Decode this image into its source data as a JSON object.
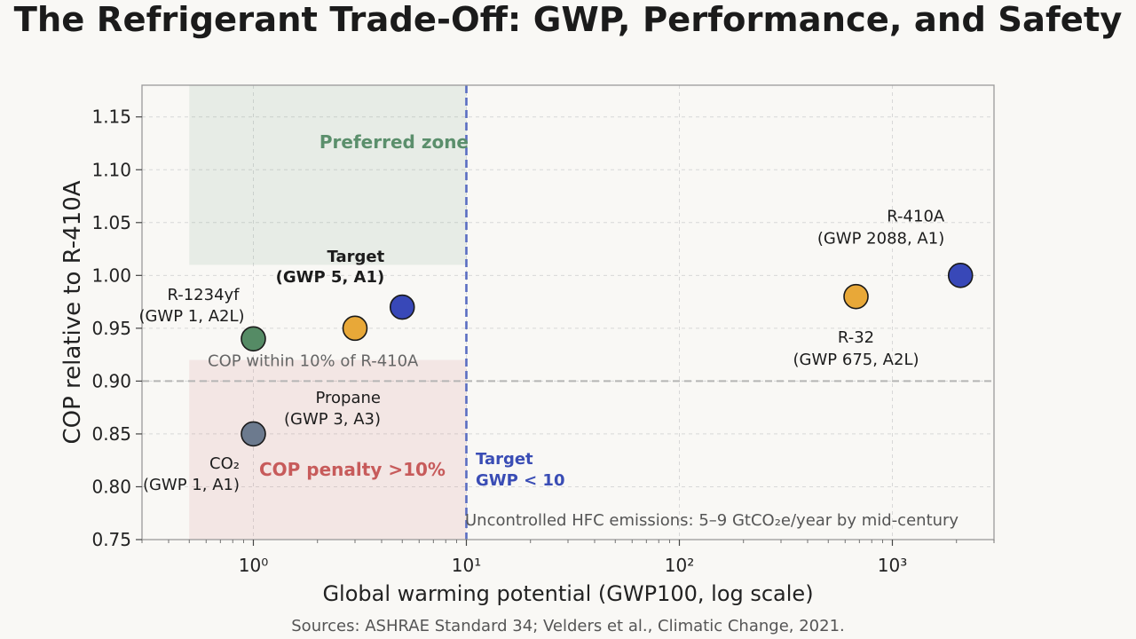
{
  "style": {
    "background": "#f9f8f5"
  },
  "chart_data": {
    "type": "scatter",
    "title": "The Refrigerant Trade-Off: GWP, Performance, and Safety",
    "xlabel": "Global warming potential (GWP100, log scale)",
    "ylabel": "COP relative to R-410A",
    "source": "Sources: ASHRAE Standard 34; Velders et al., Climatic Change, 2021.",
    "xscale": "log",
    "xlim": [
      0.3,
      3000
    ],
    "ylim": [
      0.75,
      1.18
    ],
    "xticks": [
      1,
      10,
      100,
      1000
    ],
    "xtick_labels": [
      "10⁰",
      "10¹",
      "10²",
      "10³"
    ],
    "yticks": [
      0.75,
      0.8,
      0.85,
      0.9,
      0.95,
      1.0,
      1.05,
      1.1,
      1.15
    ],
    "ytick_labels": [
      "0.75",
      "0.80",
      "0.85",
      "0.90",
      "0.95",
      "1.00",
      "1.05",
      "1.10",
      "1.15"
    ],
    "grid": true,
    "points": [
      {
        "gwp": 1,
        "cop": 0.94,
        "label": [
          "R-1234yf",
          "(GWP 1, A2L)"
        ],
        "color": "#558b65"
      },
      {
        "gwp": 1,
        "cop": 0.85,
        "label": [
          "CO₂",
          "(GWP 1, A1)"
        ],
        "color": "#6c7a8e"
      },
      {
        "gwp": 3,
        "cop": 0.95,
        "label": [
          "Propane",
          "(GWP 3, A3)"
        ],
        "color": "#e8a838"
      },
      {
        "gwp": 5,
        "cop": 0.97,
        "label": [
          "Target",
          "(GWP 5, A1)"
        ],
        "color": "#3848b8",
        "bold": true
      },
      {
        "gwp": 675,
        "cop": 0.98,
        "label": [
          "R-32",
          "(GWP 675, A2L)"
        ],
        "color": "#e8a838"
      },
      {
        "gwp": 2088,
        "cop": 1.0,
        "label": [
          "R-410A",
          "(GWP 2088, A1)"
        ],
        "color": "#3848b8"
      }
    ],
    "regions": [
      {
        "label": "Preferred zone",
        "x": [
          0.5,
          10
        ],
        "y": [
          1.01,
          1.18
        ],
        "color": "#5b8f6c"
      },
      {
        "label": "COP penalty >10%",
        "x": [
          0.5,
          10
        ],
        "y": [
          0.75,
          0.92
        ],
        "color": "#c75b5b"
      }
    ],
    "reference_lines": [
      {
        "orientation": "vertical",
        "x": 10,
        "color": "#5a6ec2",
        "style": "dashed",
        "label": [
          "Target",
          "GWP < 10"
        ],
        "label_color": "#3a4db5"
      },
      {
        "orientation": "horizontal",
        "y": 0.9,
        "color": "#b5b5b5",
        "style": "dashed",
        "label": "COP within 10% of R-410A",
        "label_color": "#666666"
      }
    ],
    "annotations": [
      {
        "text": "Uncontrolled HFC emissions: 5–9 GtCO₂e/year by mid-century",
        "color": "#555555"
      }
    ]
  }
}
